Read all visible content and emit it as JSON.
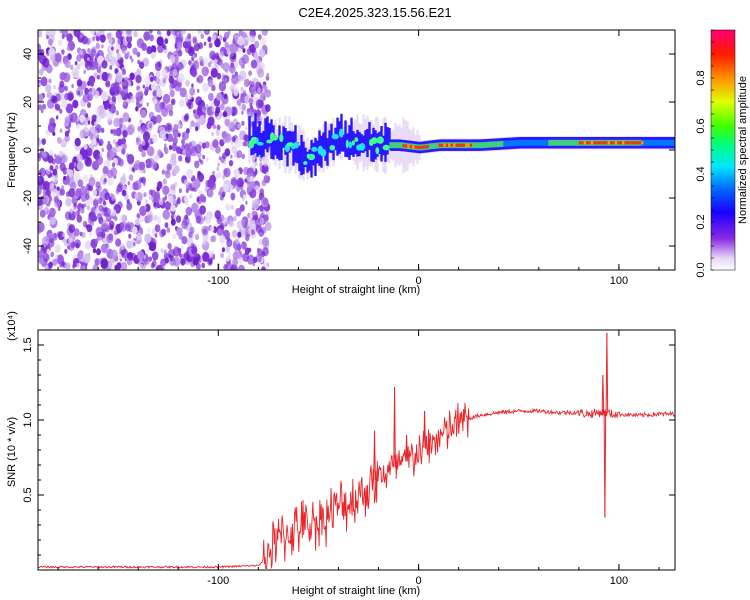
{
  "title": "C2E4.2025.323.15.56.E21",
  "chart_data": [
    {
      "type": "heatmap",
      "xlabel": "Height of straight line (km)",
      "ylabel": "Frequency (Hz)",
      "xlim": [
        -190,
        128
      ],
      "ylim": [
        -50,
        50
      ],
      "xticks": [
        -100,
        0,
        100
      ],
      "xtick_labels": [
        "-100",
        "0",
        "100"
      ],
      "yticks": [
        -40,
        -20,
        0,
        20,
        40
      ],
      "ytick_labels": [
        "-40",
        "-20",
        "0",
        "20",
        "40"
      ],
      "noise_region_x": [
        -190,
        -78
      ],
      "signal_ridge": {
        "x": [
          -85,
          -78,
          -72,
          -65,
          -60,
          -55,
          -50,
          -45,
          -40,
          -35,
          -30,
          -25,
          -20,
          -10,
          0,
          10,
          20,
          30,
          50,
          70,
          90,
          110,
          128
        ],
        "center_freq": [
          5,
          4,
          3,
          2,
          -1,
          -4,
          0,
          2,
          5,
          4,
          3,
          3,
          2,
          2,
          1,
          2,
          2,
          2,
          3,
          3,
          3,
          3,
          3
        ],
        "peak_amplitude": [
          0.25,
          0.3,
          0.35,
          0.4,
          0.45,
          0.45,
          0.5,
          0.5,
          0.55,
          0.5,
          0.55,
          0.55,
          0.6,
          0.9,
          0.85,
          0.8,
          0.9,
          0.85,
          0.6,
          0.75,
          0.85,
          0.7,
          0.6
        ]
      },
      "colorbar": {
        "label": "Normalized spectral amplitude",
        "range": [
          0.0,
          1.0
        ],
        "ticks": [
          0.0,
          0.2,
          0.4,
          0.6,
          0.8
        ],
        "tick_labels": [
          "0.0",
          "0.2",
          "0.4",
          "0.6",
          "0.8"
        ],
        "colors": [
          "#ffffff",
          "#d9c6ee",
          "#8a2be2",
          "#0000ff",
          "#00ffff",
          "#00ff00",
          "#ffff00",
          "#ff8c00",
          "#ff0000",
          "#ff0080"
        ]
      }
    },
    {
      "type": "line",
      "xlabel": "Height of straight line (km)",
      "ylabel": "SNR (10 * v/v)",
      "y_multiplier": "(x10⁴)",
      "xlim": [
        -190,
        128
      ],
      "ylim": [
        0,
        1.6
      ],
      "xticks": [
        -100,
        0,
        100
      ],
      "xtick_labels": [
        "-100",
        "0",
        "100"
      ],
      "yticks": [
        0.5,
        1.0,
        1.5
      ],
      "ytick_labels": [
        "0.5",
        "1.0",
        "1.5"
      ],
      "series": [
        {
          "name": "SNR",
          "color": "#e8262a",
          "x": [
            -190,
            -150,
            -100,
            -80,
            -78,
            -75,
            -70,
            -65,
            -60,
            -55,
            -50,
            -45,
            -40,
            -35,
            -30,
            -25,
            -22,
            -20,
            -15,
            -10,
            -5,
            0,
            5,
            10,
            15,
            20,
            25,
            30,
            40,
            50,
            60,
            70,
            80,
            85,
            90,
            92,
            94,
            96,
            100,
            110,
            120,
            128
          ],
          "values": [
            0.02,
            0.02,
            0.02,
            0.03,
            0.05,
            0.12,
            0.2,
            0.25,
            0.28,
            0.3,
            0.33,
            0.37,
            0.42,
            0.45,
            0.5,
            0.55,
            0.6,
            0.62,
            0.66,
            0.7,
            0.73,
            0.78,
            0.84,
            0.88,
            0.93,
            0.98,
            1.01,
            1.03,
            1.05,
            1.06,
            1.06,
            1.05,
            1.05,
            1.04,
            1.05,
            1.05,
            1.05,
            1.04,
            1.04,
            1.03,
            1.04,
            1.04
          ],
          "spikes": [
            {
              "x": -22,
              "value": 0.93
            },
            {
              "x": -12,
              "value": 1.22
            },
            {
              "x": -6,
              "value": 0.9
            },
            {
              "x": 3,
              "value": 1.06
            },
            {
              "x": 92,
              "value": 1.3
            },
            {
              "x": 93,
              "value": 0.35
            },
            {
              "x": 94,
              "value": 1.58
            }
          ]
        }
      ]
    }
  ]
}
